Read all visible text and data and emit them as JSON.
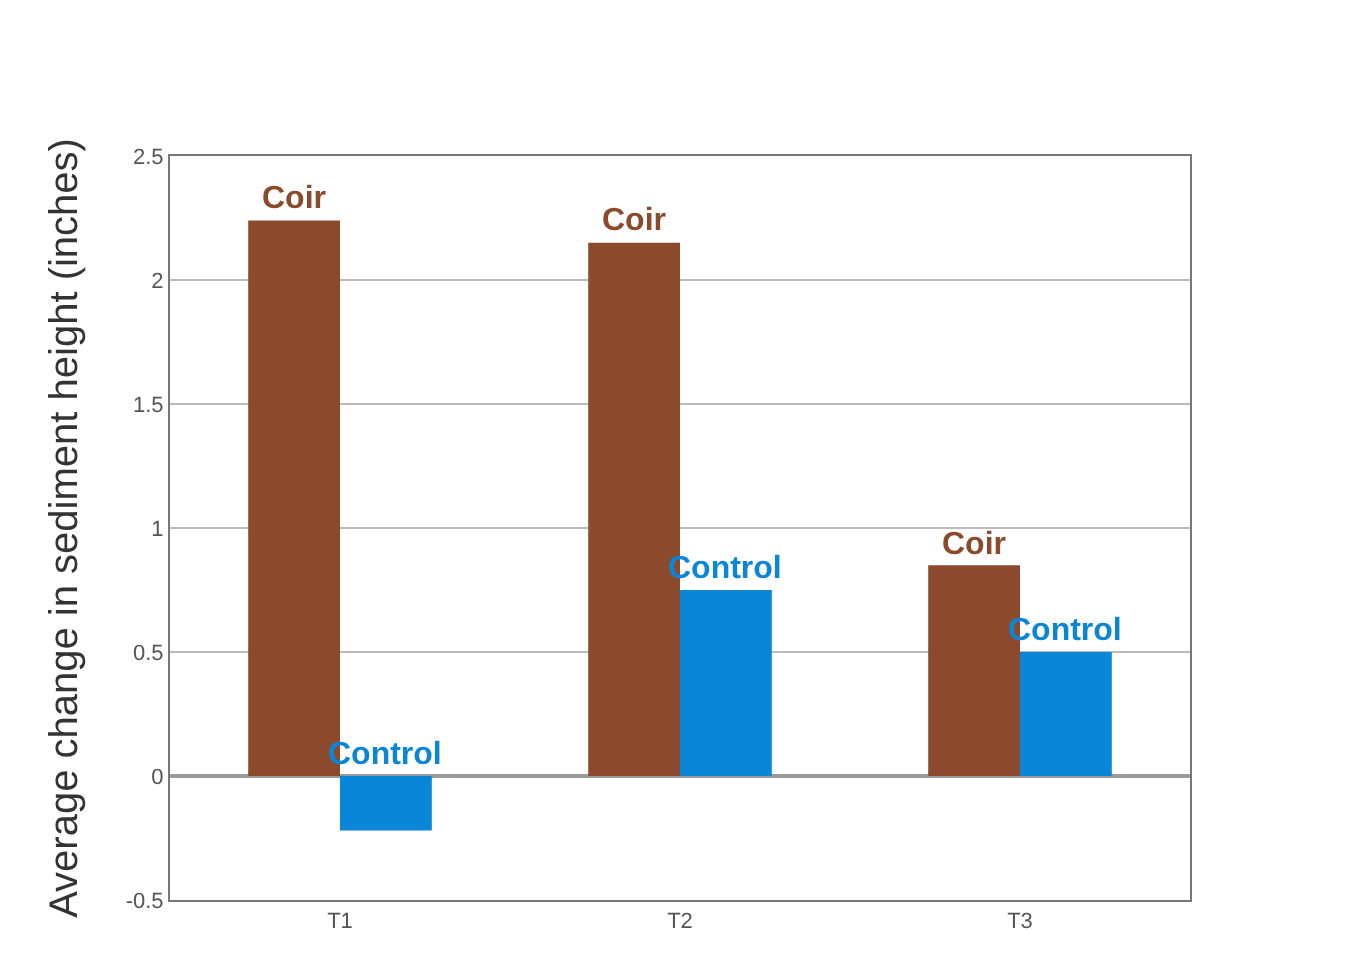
{
  "chart_data": {
    "type": "bar",
    "ylabel": "Average change in sediment height (inches)",
    "categories": [
      "T1",
      "T2",
      "T3"
    ],
    "series": [
      {
        "name": "Coir",
        "color": "#8b4a2b",
        "values": [
          2.24,
          2.15,
          0.85
        ]
      },
      {
        "name": "Control",
        "color": "#0a86d8",
        "values": [
          -0.22,
          0.75,
          0.5
        ]
      }
    ],
    "ylim": [
      -0.5,
      2.5
    ],
    "yticks": [
      -0.5,
      0,
      0.5,
      1,
      1.5,
      2,
      2.5
    ],
    "grid": "y",
    "legend": false
  }
}
